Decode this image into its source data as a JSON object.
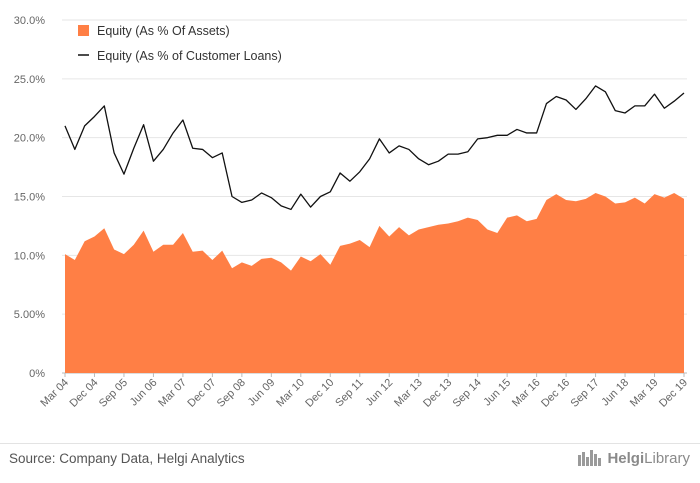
{
  "chart_data": {
    "type": "area+line",
    "categories": [
      "Mar 04",
      "Jun 04",
      "Sep 04",
      "Dec 04",
      "Mar 05",
      "Jun 05",
      "Sep 05",
      "Dec 05",
      "Mar 06",
      "Jun 06",
      "Sep 06",
      "Dec 06",
      "Mar 07",
      "Jun 07",
      "Sep 07",
      "Dec 07",
      "Mar 08",
      "Jun 08",
      "Sep 08",
      "Dec 08",
      "Mar 09",
      "Jun 09",
      "Sep 09",
      "Dec 09",
      "Mar 10",
      "Jun 10",
      "Sep 10",
      "Dec 10",
      "Mar 11",
      "Jun 11",
      "Sep 11",
      "Dec 11",
      "Mar 12",
      "Jun 12",
      "Sep 12",
      "Dec 12",
      "Mar 13",
      "Jun 13",
      "Sep 13",
      "Dec 13",
      "Mar 14",
      "Jun 14",
      "Sep 14",
      "Dec 14",
      "Mar 15",
      "Jun 15",
      "Sep 15",
      "Dec 15",
      "Mar 16",
      "Jun 16",
      "Sep 16",
      "Dec 16",
      "Mar 17",
      "Jun 17",
      "Sep 17",
      "Dec 17",
      "Mar 18",
      "Jun 18",
      "Sep 18",
      "Dec 18",
      "Mar 19",
      "Jun 19",
      "Sep 19",
      "Dec 19"
    ],
    "tick_labels": [
      "Mar 04",
      "Dec 04",
      "Sep 05",
      "Jun 06",
      "Mar 07",
      "Dec 07",
      "Sep 08",
      "Jun 09",
      "Mar 10",
      "Dec 10",
      "Sep 11",
      "Jun 12",
      "Mar 13",
      "Dec 13",
      "Sep 14",
      "Jun 15",
      "Mar 16",
      "Dec 16",
      "Sep 17",
      "Jun 18",
      "Mar 19",
      "Dec 19"
    ],
    "series": [
      {
        "name": "Equity (As % Of Assets)",
        "kind": "area",
        "color": "#ff7f45",
        "values": [
          10.1,
          9.6,
          11.2,
          11.6,
          12.3,
          10.5,
          10.1,
          10.9,
          12.1,
          10.3,
          10.9,
          10.9,
          11.9,
          10.3,
          10.4,
          9.6,
          10.4,
          8.9,
          9.4,
          9.1,
          9.7,
          9.8,
          9.4,
          8.7,
          9.9,
          9.5,
          10.1,
          9.2,
          10.8,
          11.0,
          11.3,
          10.7,
          12.5,
          11.6,
          12.4,
          11.7,
          12.2,
          12.4,
          12.6,
          12.7,
          12.9,
          13.2,
          13.0,
          12.2,
          11.9,
          13.2,
          13.4,
          12.9,
          13.1,
          14.7,
          15.2,
          14.7,
          14.6,
          14.8,
          15.3,
          15.0,
          14.4,
          14.5,
          14.9,
          14.4,
          15.2,
          14.9,
          15.3,
          14.8
        ]
      },
      {
        "name": "Equity (As % of Customer Loans)",
        "kind": "line",
        "color": "#111111",
        "values": [
          21.0,
          19.0,
          21.0,
          21.8,
          22.7,
          18.7,
          16.9,
          19.1,
          21.1,
          18.0,
          19.0,
          20.4,
          21.5,
          19.1,
          19.0,
          18.3,
          18.7,
          15.0,
          14.5,
          14.7,
          15.3,
          14.9,
          14.2,
          13.9,
          15.2,
          14.1,
          15.0,
          15.4,
          17.0,
          16.3,
          17.1,
          18.2,
          19.9,
          18.7,
          19.3,
          19.0,
          18.2,
          17.7,
          18.0,
          18.6,
          18.6,
          18.8,
          19.9,
          20.0,
          20.2,
          20.2,
          20.7,
          20.4,
          20.4,
          22.9,
          23.5,
          23.2,
          22.4,
          23.3,
          24.4,
          23.9,
          22.3,
          22.1,
          22.7,
          22.7,
          23.7,
          22.5,
          23.1,
          23.8
        ]
      }
    ],
    "y_ticks": [
      "0%",
      "5.00%",
      "10.0%",
      "15.0%",
      "20.0%",
      "25.0%",
      "30.0%"
    ],
    "ylim": [
      0,
      30
    ],
    "grid": true,
    "legend": "top-left"
  },
  "footer": {
    "source": "Source: Company Data, Helgi Analytics",
    "brand_bold": "Helgi",
    "brand_light": "Library"
  }
}
